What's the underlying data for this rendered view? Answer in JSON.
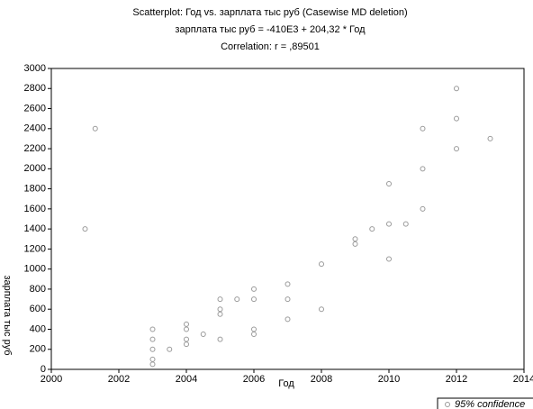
{
  "chart_data": {
    "type": "scatter",
    "title": "Scatterplot: Год      vs. зарплата тыс руб (Casewise MD deletion)",
    "subtitle": "зарплата тыс руб = -410E3 + 204,32 * Год",
    "annotation": "Correlation: r = ,89501",
    "x_label": "Год",
    "y_label": "зарплата тыс руб",
    "legend": "95% confidence",
    "legend_position": "lower right",
    "color": "#9a9a9a",
    "x": [
      2001,
      2001.3,
      2003,
      2003,
      2003,
      2003,
      2003,
      2003.5,
      2004,
      2004,
      2004,
      2004,
      2004.5,
      2005,
      2005,
      2005,
      2005,
      2005.5,
      2006,
      2006,
      2006,
      2006,
      2007,
      2007,
      2007,
      2008,
      2008,
      2009,
      2009,
      2009.5,
      2010,
      2010,
      2010,
      2010.5,
      2011,
      2011,
      2011,
      2012,
      2012,
      2012,
      2013
    ],
    "values": [
      1400,
      2400,
      400,
      300,
      200,
      100,
      50,
      200,
      450,
      400,
      300,
      250,
      350,
      700,
      600,
      550,
      300,
      700,
      800,
      700,
      400,
      350,
      850,
      700,
      500,
      1050,
      600,
      1250,
      1300,
      1400,
      1850,
      1450,
      1100,
      1450,
      2400,
      2000,
      1600,
      2800,
      2500,
      2200,
      2300
    ],
    "xlim": [
      2000,
      2014
    ],
    "xticks": [
      2000,
      2002,
      2004,
      2006,
      2008,
      2010,
      2012,
      2014
    ],
    "ylim": [
      0,
      3000
    ],
    "yticks": [
      0,
      200,
      400,
      600,
      800,
      1000,
      1200,
      1400,
      1600,
      1800,
      2000,
      2200,
      2400,
      2600,
      2800,
      3000
    ]
  }
}
